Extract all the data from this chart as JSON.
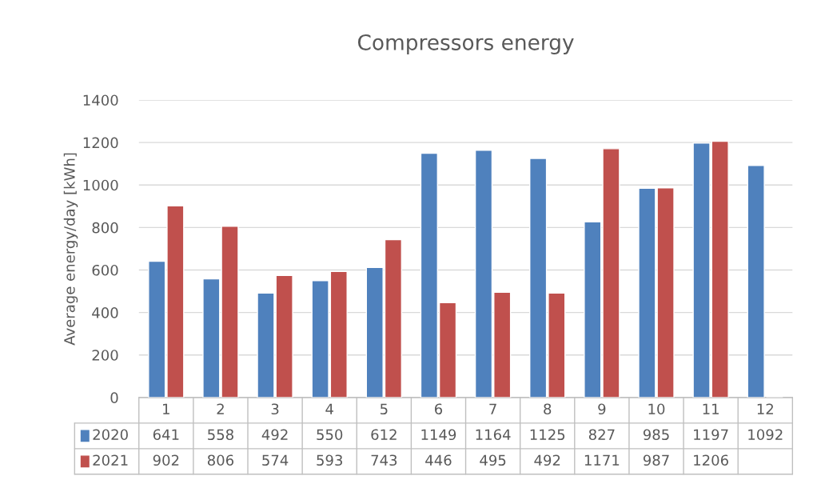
{
  "chart_data": {
    "type": "bar",
    "title": "Compressors energy",
    "ylabel": "Average energy/day [kWh]",
    "categories": [
      "1",
      "2",
      "3",
      "4",
      "5",
      "6",
      "7",
      "8",
      "9",
      "10",
      "11",
      "12"
    ],
    "series": [
      {
        "name": "2020",
        "color": "#4f81bd",
        "values": [
          641,
          558,
          492,
          550,
          612,
          1149,
          1164,
          1125,
          827,
          985,
          1197,
          1092
        ]
      },
      {
        "name": "2021",
        "color": "#c0504d",
        "values": [
          902,
          806,
          574,
          593,
          743,
          446,
          495,
          492,
          1171,
          987,
          1206,
          null
        ]
      }
    ],
    "ylim": [
      0,
      1400
    ],
    "yticks": [
      0,
      200,
      400,
      600,
      800,
      1000,
      1200,
      1400
    ],
    "grid": "y",
    "data_labels": true,
    "legend": "bottom"
  }
}
